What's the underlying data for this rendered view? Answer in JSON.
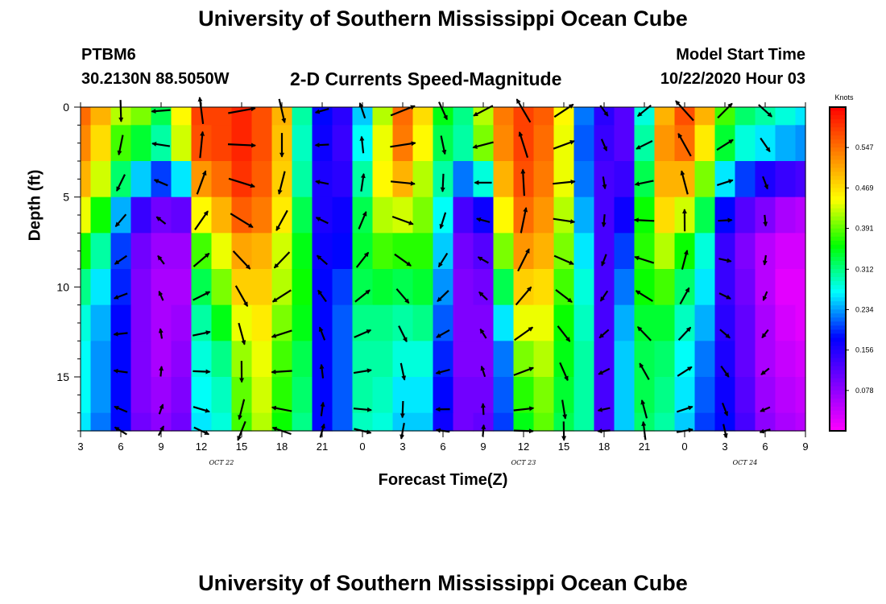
{
  "header": {
    "title": "University of Southern Mississippi Ocean Cube",
    "station_id": "PTBM6",
    "station_coords": "30.2130N 88.5050W",
    "subtitle": "2-D Currents Speed-Magnitude",
    "model_start_label": "Model Start Time",
    "model_start_value": "10/22/2020 Hour 03"
  },
  "footer": {
    "title": "University of Southern Mississippi Ocean Cube"
  },
  "chart_data": {
    "type": "heatmap",
    "title": "2-D Currents Speed-Magnitude",
    "xlabel": "Forecast Time(Z)",
    "ylabel": "Depth (ft)",
    "x_tick_labels": [
      "3",
      "6",
      "9",
      "12",
      "15",
      "18",
      "21",
      "0",
      "3",
      "6",
      "9",
      "12",
      "15",
      "18",
      "21",
      "0",
      "3",
      "6",
      "9"
    ],
    "x_range_hours": [
      0,
      54
    ],
    "date_labels": [
      {
        "text": "OCT 22",
        "hour": 10.5
      },
      {
        "text": "OCT 23",
        "hour": 33
      },
      {
        "text": "OCT 24",
        "hour": 49.5
      }
    ],
    "y_ticks": [
      0,
      5,
      10,
      15
    ],
    "y_range_ft": [
      0,
      18
    ],
    "colorbar": {
      "label": "Knots",
      "ticks": [
        "0.547",
        "0.469",
        "0.391",
        "0.312",
        "0.234",
        "0.156",
        "0.078"
      ],
      "tick_values": [
        0.547,
        0.469,
        0.391,
        0.312,
        0.234,
        0.156,
        0.078
      ],
      "range": [
        0,
        0.625
      ]
    },
    "color_scale": [
      "#ff00ff",
      "#8000ff",
      "#0000ff",
      "#00ffff",
      "#00ff00",
      "#ffff00",
      "#ff8000",
      "#ff0000"
    ],
    "time_hours": [
      0,
      1.5,
      3,
      4.5,
      6,
      7.5,
      9,
      10.5,
      12,
      13.5,
      15,
      16.5,
      18,
      19.5,
      21,
      22.5,
      24,
      25.5,
      27,
      28.5,
      30,
      31.5,
      33,
      34.5,
      36,
      37.5,
      39,
      40.5,
      42,
      43.5,
      45,
      46.5,
      48,
      49.5,
      51,
      52.5,
      54
    ],
    "depth_ft": [
      0,
      2,
      4,
      6,
      8,
      10,
      12,
      14,
      16,
      18
    ],
    "speed_kts": [
      [
        0.55,
        0.5,
        0.42,
        0.4,
        0.33,
        0.45,
        0.58,
        0.58,
        0.6,
        0.57,
        0.5,
        0.3,
        0.18,
        0.15,
        0.25,
        0.42,
        0.55,
        0.47,
        0.35,
        0.31,
        0.42,
        0.54,
        0.58,
        0.56,
        0.45,
        0.22,
        0.15,
        0.12,
        0.28,
        0.5,
        0.57,
        0.5,
        0.38,
        0.32,
        0.3,
        0.28,
        0.26
      ],
      [
        0.53,
        0.47,
        0.38,
        0.34,
        0.3,
        0.43,
        0.57,
        0.58,
        0.6,
        0.57,
        0.49,
        0.29,
        0.17,
        0.14,
        0.27,
        0.44,
        0.54,
        0.45,
        0.33,
        0.3,
        0.4,
        0.53,
        0.58,
        0.55,
        0.44,
        0.21,
        0.14,
        0.12,
        0.3,
        0.52,
        0.55,
        0.46,
        0.34,
        0.28,
        0.26,
        0.24,
        0.23
      ],
      [
        0.5,
        0.43,
        0.32,
        0.25,
        0.2,
        0.26,
        0.52,
        0.55,
        0.59,
        0.56,
        0.48,
        0.3,
        0.16,
        0.15,
        0.3,
        0.45,
        0.5,
        0.42,
        0.3,
        0.22,
        0.28,
        0.5,
        0.57,
        0.54,
        0.44,
        0.22,
        0.13,
        0.14,
        0.33,
        0.5,
        0.5,
        0.4,
        0.26,
        0.2,
        0.16,
        0.14,
        0.13
      ],
      [
        0.44,
        0.36,
        0.24,
        0.14,
        0.1,
        0.11,
        0.45,
        0.5,
        0.56,
        0.54,
        0.46,
        0.33,
        0.16,
        0.17,
        0.33,
        0.42,
        0.43,
        0.4,
        0.27,
        0.13,
        0.17,
        0.45,
        0.55,
        0.52,
        0.42,
        0.24,
        0.13,
        0.17,
        0.36,
        0.47,
        0.43,
        0.33,
        0.18,
        0.12,
        0.09,
        0.06,
        0.05
      ],
      [
        0.36,
        0.3,
        0.2,
        0.1,
        0.07,
        0.07,
        0.38,
        0.44,
        0.51,
        0.5,
        0.43,
        0.35,
        0.17,
        0.18,
        0.34,
        0.38,
        0.37,
        0.37,
        0.25,
        0.1,
        0.12,
        0.4,
        0.52,
        0.5,
        0.4,
        0.26,
        0.13,
        0.2,
        0.37,
        0.42,
        0.36,
        0.28,
        0.14,
        0.09,
        0.05,
        0.03,
        0.03
      ],
      [
        0.31,
        0.26,
        0.19,
        0.09,
        0.06,
        0.06,
        0.33,
        0.4,
        0.48,
        0.48,
        0.42,
        0.36,
        0.18,
        0.2,
        0.33,
        0.34,
        0.33,
        0.34,
        0.23,
        0.09,
        0.1,
        0.33,
        0.48,
        0.47,
        0.38,
        0.28,
        0.13,
        0.22,
        0.36,
        0.38,
        0.32,
        0.26,
        0.14,
        0.1,
        0.05,
        0.02,
        0.02
      ],
      [
        0.28,
        0.24,
        0.18,
        0.09,
        0.06,
        0.07,
        0.3,
        0.35,
        0.44,
        0.46,
        0.4,
        0.35,
        0.18,
        0.21,
        0.31,
        0.31,
        0.3,
        0.31,
        0.21,
        0.09,
        0.09,
        0.26,
        0.44,
        0.44,
        0.36,
        0.29,
        0.13,
        0.24,
        0.34,
        0.34,
        0.29,
        0.24,
        0.15,
        0.11,
        0.06,
        0.03,
        0.02
      ],
      [
        0.27,
        0.23,
        0.18,
        0.09,
        0.06,
        0.08,
        0.28,
        0.31,
        0.41,
        0.44,
        0.38,
        0.33,
        0.18,
        0.21,
        0.3,
        0.3,
        0.28,
        0.28,
        0.19,
        0.09,
        0.09,
        0.22,
        0.4,
        0.42,
        0.35,
        0.3,
        0.13,
        0.25,
        0.33,
        0.32,
        0.27,
        0.22,
        0.16,
        0.11,
        0.06,
        0.04,
        0.03
      ],
      [
        0.27,
        0.23,
        0.18,
        0.09,
        0.07,
        0.09,
        0.27,
        0.29,
        0.39,
        0.43,
        0.37,
        0.32,
        0.18,
        0.21,
        0.3,
        0.29,
        0.26,
        0.26,
        0.18,
        0.1,
        0.1,
        0.21,
        0.37,
        0.4,
        0.34,
        0.3,
        0.13,
        0.25,
        0.33,
        0.31,
        0.26,
        0.21,
        0.17,
        0.12,
        0.07,
        0.05,
        0.04
      ],
      [
        0.26,
        0.22,
        0.18,
        0.1,
        0.08,
        0.1,
        0.26,
        0.28,
        0.38,
        0.42,
        0.36,
        0.31,
        0.18,
        0.21,
        0.29,
        0.28,
        0.25,
        0.25,
        0.17,
        0.1,
        0.11,
        0.2,
        0.35,
        0.39,
        0.33,
        0.3,
        0.13,
        0.25,
        0.32,
        0.3,
        0.25,
        0.2,
        0.18,
        0.13,
        0.08,
        0.06,
        0.05
      ]
    ]
  }
}
